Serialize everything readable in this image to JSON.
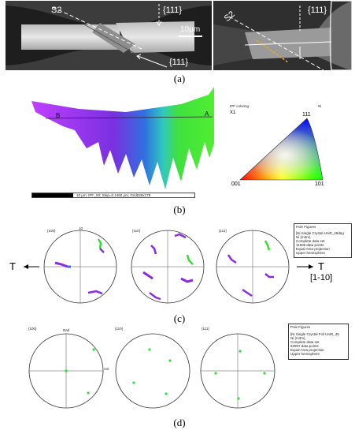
{
  "panel_a": {
    "label": "(a)",
    "left_image": {
      "s2": "S2",
      "top": "{111}",
      "bottom": "{111}",
      "scale": "10μm"
    },
    "right_image": {
      "s2": "S2",
      "top": "{111}"
    }
  },
  "panel_b": {
    "label": "(b)",
    "map_labels": {
      "a": "A",
      "b": "B"
    },
    "scalebar_caption": "10 μm; IPF_X0; Step=0.1460 μm; Grid528x178",
    "ipf": {
      "header_left": "IPF coloring",
      "header_right": "Ni",
      "x1": "X1",
      "v111": "111",
      "v001": "001",
      "v101": "101"
    }
  },
  "panel_c": {
    "label": "(c)",
    "pole_labels": [
      "{100}",
      "{110}",
      "{111}"
    ],
    "top_tick": "10",
    "left_arrow": "T",
    "right_arrow": "T",
    "direction": "[1-10]",
    "legend": [
      "Pole Figures",
      "[Ni Single Crystal UniR_45deg",
      "Ni (m3m)",
      "Complete data set",
      "11606 data points",
      "Equal Area projection",
      "Upper hemisphere"
    ]
  },
  "panel_d": {
    "label": "(d)",
    "pole_labels": [
      "{100}",
      "{110}",
      "{111}"
    ],
    "rad": "Rad",
    "axl": "Axl",
    "legend": [
      "Pole Figures",
      "[Ni Single Crystal Foil UniR_45",
      "Ni (m3m)",
      "Complete data set",
      "62997 data points",
      "Equal Area projection",
      "Upper hemisphere"
    ]
  },
  "colors": {
    "purple": "#8a2be2",
    "green": "#33dd33",
    "blue": "#3a6bd6"
  }
}
